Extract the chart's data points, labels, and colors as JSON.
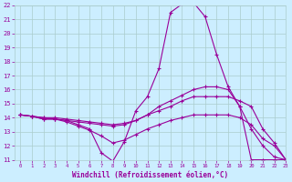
{
  "xlabel": "Windchill (Refroidissement éolien,°C)",
  "bg_color": "#cceeff",
  "grid_color": "#aacccc",
  "line_color": "#990099",
  "xlim": [
    -0.5,
    23
  ],
  "ylim": [
    11,
    22
  ],
  "yticks": [
    11,
    12,
    13,
    14,
    15,
    16,
    17,
    18,
    19,
    20,
    21,
    22
  ],
  "xticks": [
    0,
    1,
    2,
    3,
    4,
    5,
    6,
    7,
    8,
    9,
    10,
    11,
    12,
    13,
    14,
    15,
    16,
    17,
    18,
    19,
    20,
    21,
    22,
    23
  ],
  "series": [
    [
      14.2,
      14.1,
      13.9,
      13.9,
      13.8,
      13.5,
      13.2,
      11.5,
      10.9,
      12.3,
      14.5,
      15.5,
      17.5,
      21.5,
      22.1,
      22.2,
      21.2,
      18.5,
      16.2,
      14.8,
      13.2,
      12.0,
      11.2,
      11.0
    ],
    [
      14.2,
      14.1,
      13.9,
      13.9,
      13.8,
      13.7,
      13.6,
      13.5,
      13.4,
      13.5,
      13.8,
      14.2,
      14.8,
      15.2,
      15.6,
      16.0,
      16.2,
      16.2,
      16.0,
      14.8,
      11.0,
      11.0,
      11.0,
      11.0
    ],
    [
      14.2,
      14.1,
      14.0,
      14.0,
      13.9,
      13.8,
      13.7,
      13.6,
      13.5,
      13.6,
      13.8,
      14.2,
      14.5,
      14.8,
      15.2,
      15.5,
      15.5,
      15.5,
      15.5,
      15.2,
      14.8,
      13.2,
      12.2,
      11.0
    ],
    [
      14.2,
      14.1,
      14.0,
      13.9,
      13.7,
      13.4,
      13.1,
      12.7,
      12.2,
      12.4,
      12.8,
      13.2,
      13.5,
      13.8,
      14.0,
      14.2,
      14.2,
      14.2,
      14.2,
      14.0,
      13.5,
      12.5,
      12.0,
      11.0
    ]
  ]
}
